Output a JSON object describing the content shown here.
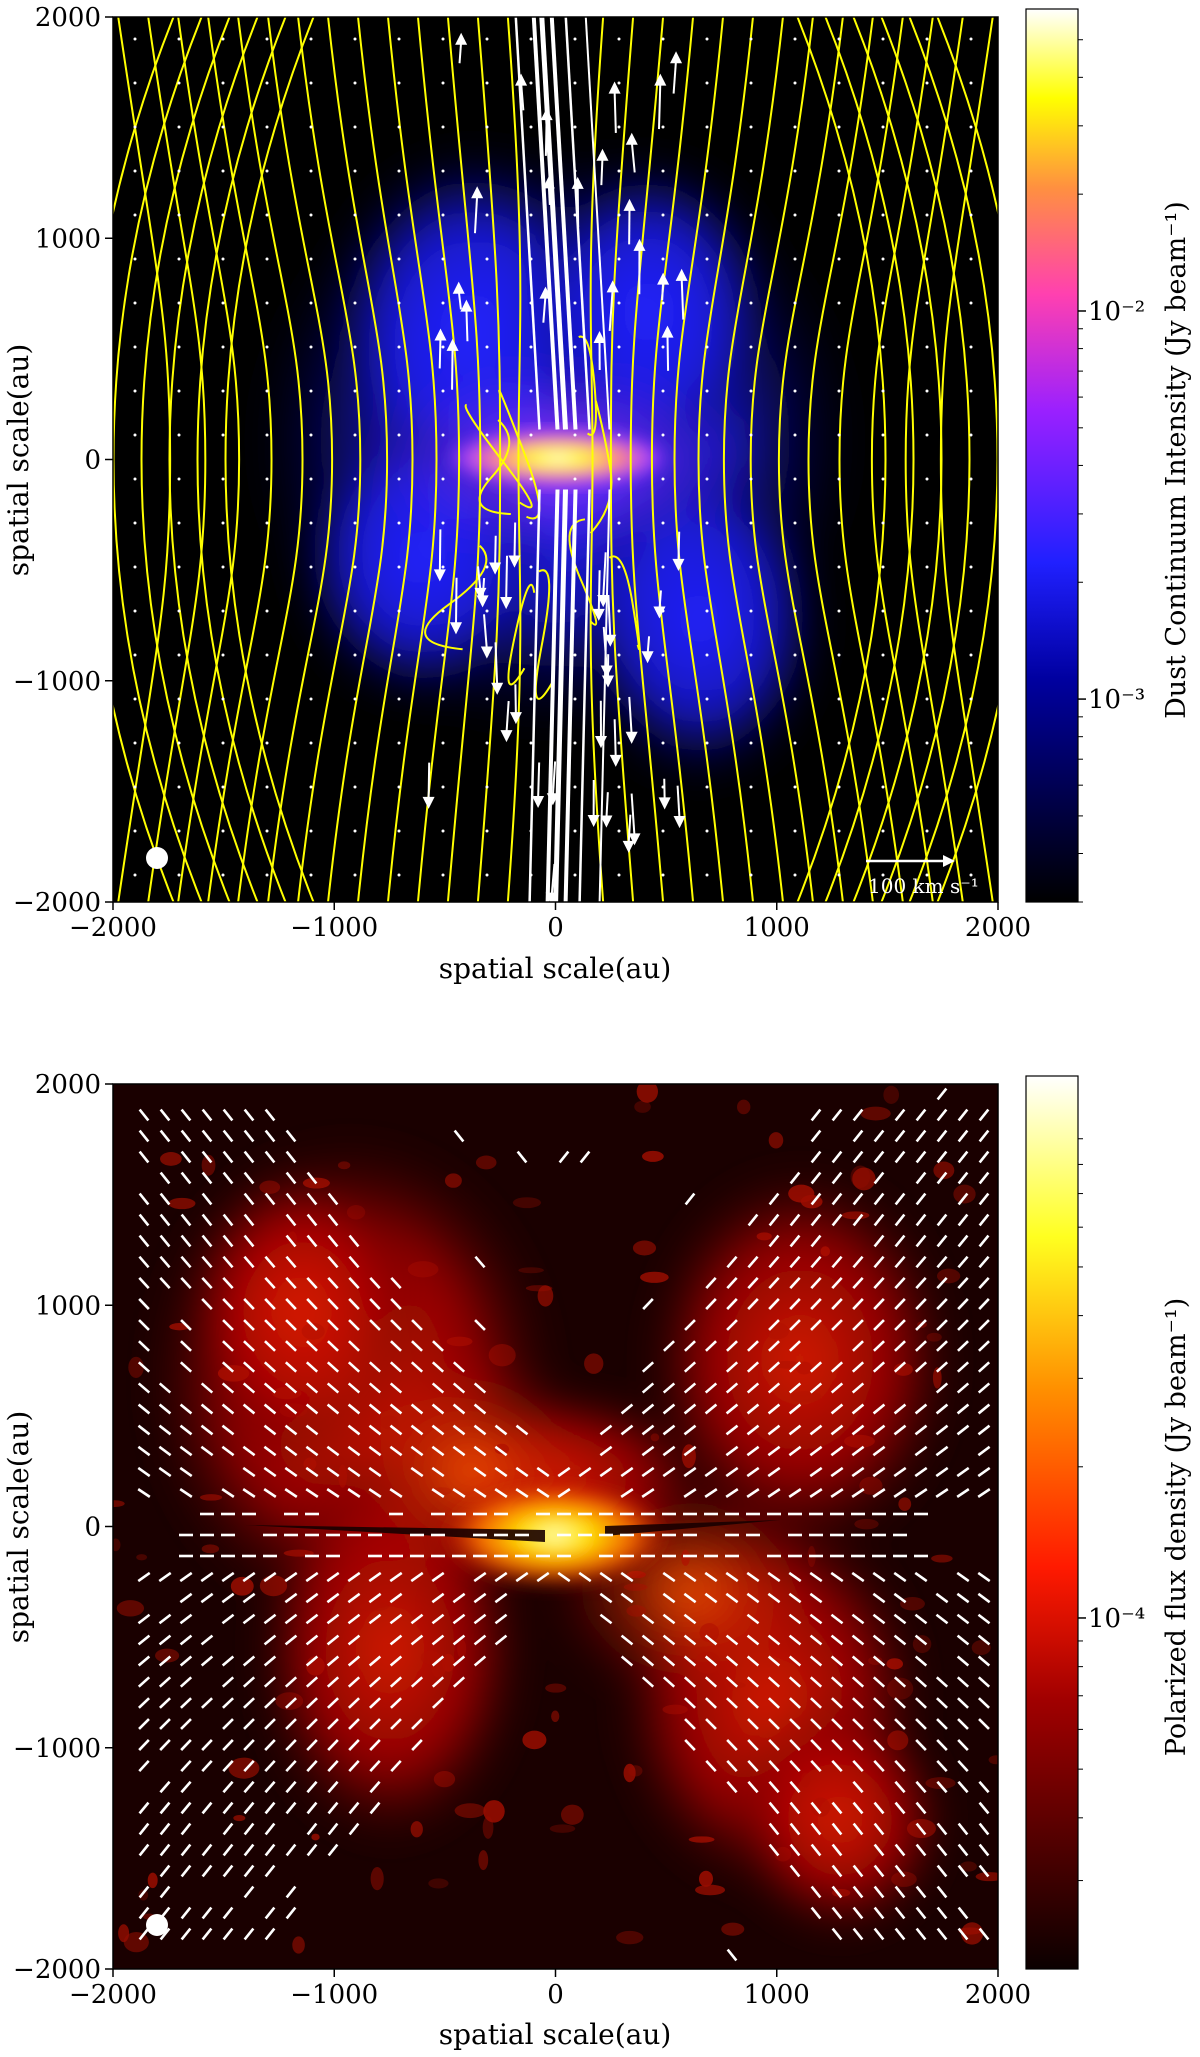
{
  "chart_data": [
    {
      "type": "heatmap",
      "panel": "top",
      "xlabel": "spatial scale(au)",
      "ylabel": "spatial scale(au)",
      "xlim": [
        -2000,
        2000
      ],
      "ylim": [
        -2000,
        2000
      ],
      "x_ticks": [
        -2000,
        -1000,
        0,
        1000,
        2000
      ],
      "y_ticks": [
        -2000,
        -1000,
        0,
        1000,
        2000
      ],
      "x_tick_labels": [
        "−2000",
        "−1000",
        "0",
        "1000",
        "2000"
      ],
      "y_tick_labels": [
        "−2000",
        "−1000",
        "0",
        "1000",
        "2000"
      ],
      "colorbar": {
        "label": "Dust Continuum Intensity (Jy beam⁻¹)",
        "scale": "log",
        "range": [
          0.0003,
          0.06
        ],
        "ticks": [
          0.001,
          0.01
        ],
        "tick_labels": [
          "10⁻³",
          "10⁻²"
        ],
        "colormap": "gnuplot2"
      },
      "overlays": {
        "field_lines_color": "#ffff00",
        "velocity_vectors_color": "#ffffff",
        "velocity_scale_label": "100 km s⁻¹",
        "beam_color": "#ffffff"
      }
    },
    {
      "type": "heatmap",
      "panel": "bottom",
      "xlabel": "spatial scale(au)",
      "ylabel": "spatial scale(au)",
      "xlim": [
        -2000,
        2000
      ],
      "ylim": [
        -2000,
        2000
      ],
      "x_ticks": [
        -2000,
        -1000,
        0,
        1000,
        2000
      ],
      "y_ticks": [
        -2000,
        -1000,
        0,
        1000,
        2000
      ],
      "x_tick_labels": [
        "−2000",
        "−1000",
        "0",
        "1000",
        "2000"
      ],
      "y_tick_labels": [
        "−2000",
        "−1000",
        "0",
        "1000",
        "2000"
      ],
      "colorbar": {
        "label": "Polarized flux density (Jy beam⁻¹)",
        "scale": "log",
        "range": [
          2e-05,
          0.0012
        ],
        "ticks": [
          0.0001
        ],
        "tick_labels": [
          "10⁻⁴"
        ],
        "colormap": "hot"
      },
      "overlays": {
        "polarization_vectors_color": "#ffffff",
        "beam_color": "#ffffff"
      }
    }
  ]
}
